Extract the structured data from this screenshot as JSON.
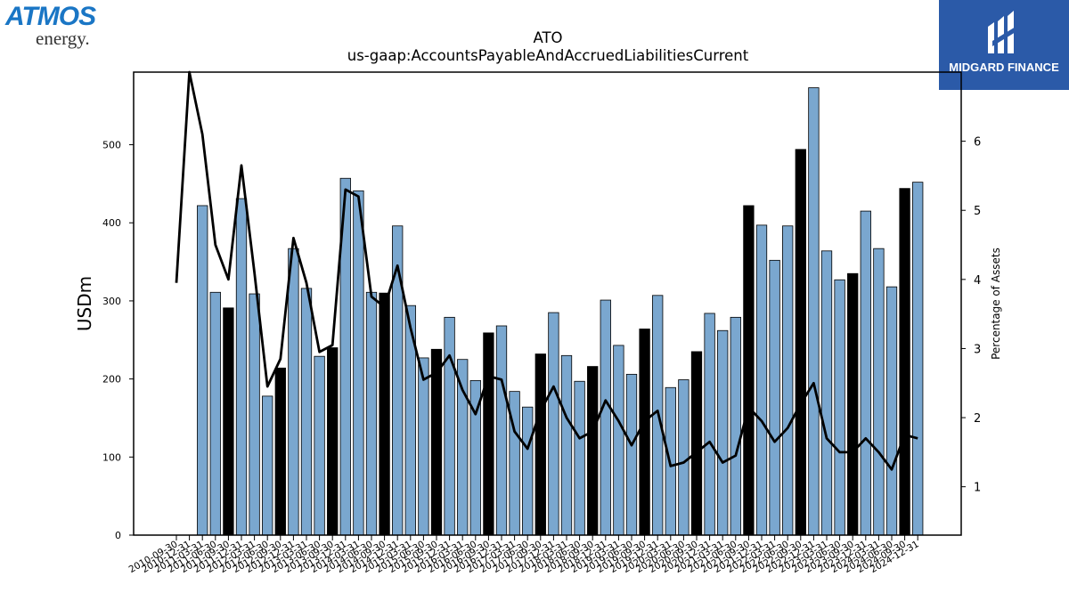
{
  "logos": {
    "atmos_word": "ATMOS",
    "atmos_sub": "energy.",
    "midgard_text": "MIDGARD FINANCE"
  },
  "chart_data": {
    "type": "bar",
    "title": "ATO",
    "subtitle": "us-gaap:AccountsPayableAndAccruedLiabilitiesCurrent",
    "ylabel": "USDm",
    "y2label": "Percentage of Assets",
    "ylim": [
      0,
      593
    ],
    "y2lim": [
      0.3,
      7
    ],
    "yticks": [
      0,
      100,
      200,
      300,
      400,
      500
    ],
    "y2ticks": [
      1,
      2,
      3,
      4,
      5,
      6
    ],
    "categories": [
      "2010-09-30",
      "2010-12-31",
      "2011-03-31",
      "2011-06-30",
      "2011-09-30",
      "2011-12-31",
      "2012-03-31",
      "2012-06-30",
      "2012-09-30",
      "2012-12-31",
      "2013-03-31",
      "2013-06-30",
      "2013-09-30",
      "2013-12-31",
      "2014-03-31",
      "2014-06-30",
      "2014-09-30",
      "2014-12-31",
      "2015-03-31",
      "2015-06-30",
      "2015-09-30",
      "2015-12-31",
      "2016-03-31",
      "2016-06-30",
      "2016-09-30",
      "2016-12-31",
      "2017-03-31",
      "2017-06-30",
      "2017-09-30",
      "2017-12-31",
      "2018-03-31",
      "2018-06-30",
      "2018-09-30",
      "2018-12-31",
      "2019-03-31",
      "2019-06-30",
      "2019-09-30",
      "2019-12-31",
      "2020-03-31",
      "2020-06-30",
      "2020-09-30",
      "2020-12-31",
      "2021-03-31",
      "2021-06-30",
      "2021-09-30",
      "2021-12-31",
      "2022-03-31",
      "2022-06-30",
      "2022-09-30",
      "2022-12-31",
      "2023-03-31",
      "2023-06-30",
      "2023-09-30",
      "2023-12-31",
      "2024-03-31",
      "2024-06-30",
      "2024-09-30",
      "2024-12-31"
    ],
    "series": [
      {
        "values": [
          null,
          null,
          422,
          311,
          291,
          431,
          309,
          178,
          214,
          367,
          316,
          229,
          240,
          457,
          441,
          311,
          310,
          396,
          294,
          227,
          238,
          279,
          225,
          198,
          259,
          268,
          184,
          164,
          232,
          285,
          230,
          197,
          216,
          301,
          243,
          206,
          264,
          307,
          189,
          199,
          235,
          284,
          262,
          279,
          422,
          397,
          352,
          396,
          494,
          573,
          364,
          327,
          335,
          415,
          367,
          318,
          444,
          452
        ],
        "colors": [
          "#7aa7cf",
          "#000000"
        ]
      },
      {
        "values": [
          3.95,
          7.0,
          6.1,
          4.5,
          4.0,
          5.65,
          4.1,
          2.45,
          2.85,
          4.6,
          3.95,
          2.95,
          3.05,
          5.3,
          5.2,
          3.75,
          3.6,
          4.2,
          3.3,
          2.55,
          2.65,
          2.9,
          2.4,
          2.05,
          2.6,
          2.55,
          1.8,
          1.55,
          2.1,
          2.45,
          2.0,
          1.7,
          1.8,
          2.25,
          1.95,
          1.6,
          1.95,
          2.1,
          1.3,
          1.35,
          1.5,
          1.65,
          1.35,
          1.45,
          2.15,
          1.95,
          1.65,
          1.85,
          2.2,
          2.5,
          1.7,
          1.5,
          1.5,
          1.7,
          1.5,
          1.25,
          1.75,
          1.7
        ]
      }
    ]
  }
}
